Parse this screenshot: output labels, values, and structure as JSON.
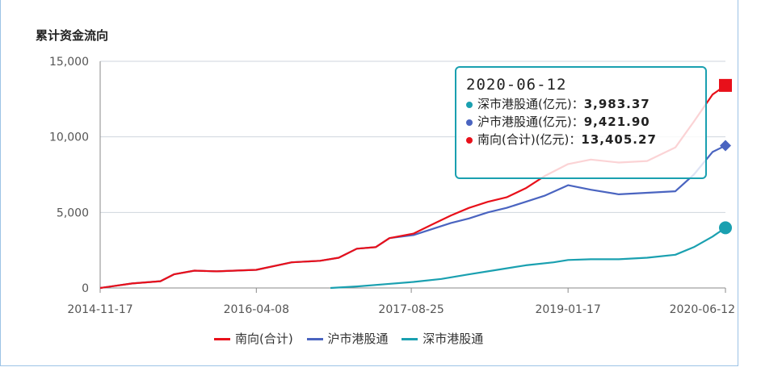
{
  "chart_data": {
    "type": "line",
    "title": "累计资金流向",
    "ylim": [
      0,
      15000
    ],
    "y_ticks": [
      "15,000",
      "10,000",
      "5,000",
      "0"
    ],
    "y_tick_values": [
      15000,
      10000,
      5000,
      0
    ],
    "x_ticks": [
      "2014-11-17",
      "2016-04-08",
      "2017-08-25",
      "2019-01-17",
      "2020-06-12"
    ],
    "x_range": [
      "2014-11-17",
      "2020-06-12"
    ],
    "grid": "horizontal",
    "legend_placement": "bottom",
    "series": [
      {
        "name": "南向(合计)",
        "color": "#e8101a",
        "marker": "square",
        "points": [
          [
            "2014-11-17",
            0
          ],
          [
            "2015-03-01",
            300
          ],
          [
            "2015-06-01",
            450
          ],
          [
            "2015-07-15",
            900
          ],
          [
            "2015-09-20",
            1150
          ],
          [
            "2015-12-01",
            1100
          ],
          [
            "2016-04-08",
            1200
          ],
          [
            "2016-08-01",
            1700
          ],
          [
            "2016-11-01",
            1800
          ],
          [
            "2017-01-01",
            2000
          ],
          [
            "2017-03-01",
            2600
          ],
          [
            "2017-05-01",
            2700
          ],
          [
            "2017-06-15",
            3300
          ],
          [
            "2017-09-01",
            3600
          ],
          [
            "2017-11-01",
            4200
          ],
          [
            "2018-01-01",
            4800
          ],
          [
            "2018-03-01",
            5300
          ],
          [
            "2018-05-01",
            5700
          ],
          [
            "2018-07-01",
            6000
          ],
          [
            "2018-09-01",
            6600
          ],
          [
            "2018-11-01",
            7400
          ],
          [
            "2019-01-17",
            8200
          ],
          [
            "2019-04-01",
            8500
          ],
          [
            "2019-07-01",
            8300
          ],
          [
            "2019-10-01",
            8400
          ],
          [
            "2020-01-01",
            9300
          ],
          [
            "2020-03-01",
            11000
          ],
          [
            "2020-05-01",
            12800
          ],
          [
            "2020-06-12",
            13405.27
          ]
        ]
      },
      {
        "name": "沪市港股通",
        "color": "#4a64c0",
        "marker": "diamond",
        "points": [
          [
            "2014-11-17",
            0
          ],
          [
            "2015-03-01",
            300
          ],
          [
            "2015-06-01",
            450
          ],
          [
            "2015-07-15",
            900
          ],
          [
            "2015-09-20",
            1150
          ],
          [
            "2015-12-01",
            1100
          ],
          [
            "2016-04-08",
            1200
          ],
          [
            "2016-08-01",
            1700
          ],
          [
            "2016-11-01",
            1800
          ],
          [
            "2017-01-01",
            2000
          ],
          [
            "2017-03-01",
            2600
          ],
          [
            "2017-05-01",
            2700
          ],
          [
            "2017-06-15",
            3300
          ],
          [
            "2017-09-01",
            3500
          ],
          [
            "2017-11-01",
            3900
          ],
          [
            "2018-01-01",
            4300
          ],
          [
            "2018-03-01",
            4600
          ],
          [
            "2018-05-01",
            5000
          ],
          [
            "2018-07-01",
            5300
          ],
          [
            "2018-09-01",
            5700
          ],
          [
            "2018-11-01",
            6100
          ],
          [
            "2019-01-17",
            6800
          ],
          [
            "2019-04-01",
            6500
          ],
          [
            "2019-07-01",
            6200
          ],
          [
            "2019-10-01",
            6300
          ],
          [
            "2020-01-01",
            6400
          ],
          [
            "2020-03-01",
            7500
          ],
          [
            "2020-05-01",
            9000
          ],
          [
            "2020-06-12",
            9421.9
          ]
        ]
      },
      {
        "name": "深市港股通",
        "color": "#1aa0b0",
        "marker": "circle",
        "points": [
          [
            "2016-12-05",
            0
          ],
          [
            "2017-03-01",
            100
          ],
          [
            "2017-06-01",
            250
          ],
          [
            "2017-09-01",
            400
          ],
          [
            "2017-12-01",
            600
          ],
          [
            "2018-03-01",
            900
          ],
          [
            "2018-06-01",
            1200
          ],
          [
            "2018-09-01",
            1500
          ],
          [
            "2018-12-01",
            1700
          ],
          [
            "2019-01-17",
            1850
          ],
          [
            "2019-04-01",
            1900
          ],
          [
            "2019-07-01",
            1900
          ],
          [
            "2019-10-01",
            2000
          ],
          [
            "2020-01-01",
            2200
          ],
          [
            "2020-03-01",
            2700
          ],
          [
            "2020-05-01",
            3400
          ],
          [
            "2020-06-12",
            3983.37
          ]
        ]
      }
    ]
  },
  "tooltip": {
    "date": "2020-06-12",
    "rows": [
      {
        "label": "深市港股通(亿元)：",
        "value": "3,983.37",
        "color": "#1aa0b0"
      },
      {
        "label": "沪市港股通(亿元)：",
        "value": "9,421.90",
        "color": "#4a64c0"
      },
      {
        "label": "南向(合计)(亿元)：",
        "value": "13,405.27",
        "color": "#e8101a"
      }
    ]
  },
  "legend": [
    {
      "label": "南向(合计)",
      "color": "#e8101a"
    },
    {
      "label": "沪市港股通",
      "color": "#4a64c0"
    },
    {
      "label": "深市港股通",
      "color": "#1aa0b0"
    }
  ]
}
